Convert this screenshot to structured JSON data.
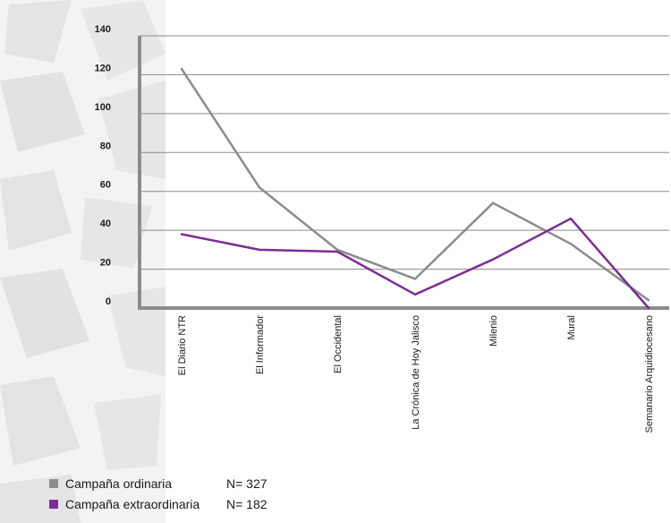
{
  "chart_data": {
    "type": "line",
    "categories": [
      "El Diario NTR",
      "El Informador",
      "El Occidental",
      "La Crónica de Hoy Jalisco",
      "Milenio",
      "Mural",
      "Semanario Arquidiocesano"
    ],
    "series": [
      {
        "name": "Campaña ordinaria",
        "n_label": "N= 327",
        "color": "#8a8c8e",
        "values": [
          123,
          62,
          30,
          15,
          54,
          33,
          4
        ]
      },
      {
        "name": "Campaña extraordinaria",
        "n_label": "N= 182",
        "color": "#7b2d96",
        "values": [
          38,
          30,
          29,
          7,
          25,
          46,
          0
        ]
      }
    ],
    "y_ticks": [
      "0",
      "20",
      "40",
      "60",
      "80",
      "100",
      "120",
      "140"
    ],
    "ylim": [
      0,
      140
    ],
    "grid": true,
    "legend_position": "bottom-left"
  }
}
